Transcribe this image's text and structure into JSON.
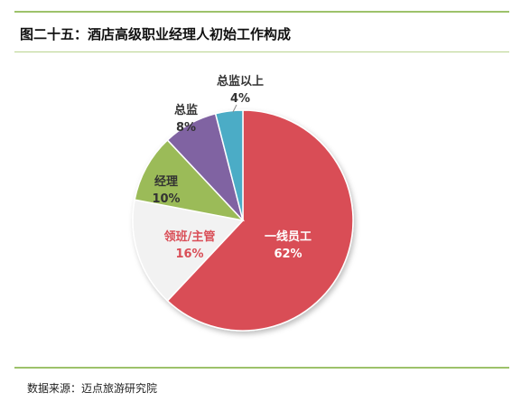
{
  "header": {
    "title": "图二十五：酒店高级职业经理人初始工作构成"
  },
  "footer": {
    "source": "数据来源：迈点旅游研究院"
  },
  "chart_data": {
    "type": "pie",
    "title": "图二十五：酒店高级职业经理人初始工作构成",
    "slices": [
      {
        "label": "一线员工",
        "value": 62,
        "display": "62%",
        "color": "#d94e57",
        "label_color": "#ffffff"
      },
      {
        "label": "领班/主管",
        "value": 16,
        "display": "16%",
        "color": "#f2f2f2",
        "label_color": "#d94e57"
      },
      {
        "label": "经理",
        "value": 10,
        "display": "10%",
        "color": "#9bbb59",
        "label_color": "#333333"
      },
      {
        "label": "总监",
        "value": 8,
        "display": "8%",
        "color": "#8064a2",
        "label_color": "#333333"
      },
      {
        "label": "总监以上",
        "value": 4,
        "display": "4%",
        "color": "#4bacc6",
        "label_color": "#333333"
      }
    ],
    "start": "12 o'clock",
    "direction": "clockwise",
    "legend": "none"
  }
}
